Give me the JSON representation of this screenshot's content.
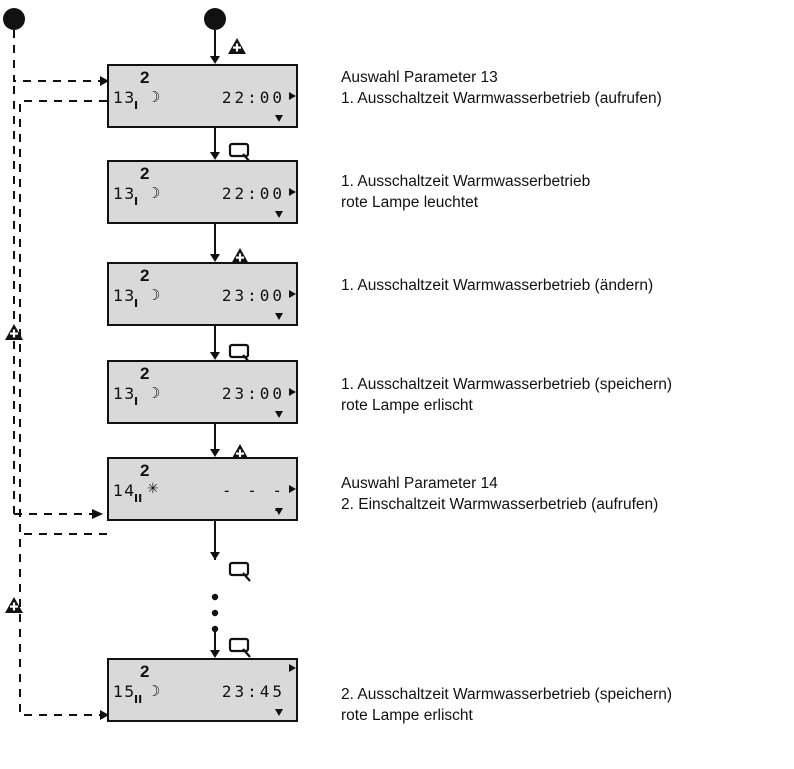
{
  "screens": [
    {
      "program": "2",
      "param": "13",
      "sub": "I",
      "mode": "moon",
      "value": "22:00",
      "arrow_right": true,
      "arrow_down": true,
      "desc": [
        "Auswahl Parameter 13",
        "1. Ausschaltzeit  Warmwasserbetrieb  (aufrufen)"
      ]
    },
    {
      "program": "2",
      "param": "13",
      "sub": "I",
      "mode": "moon",
      "value": "22:00",
      "arrow_right": true,
      "arrow_down": true,
      "desc": [
        "1. Ausschaltzeit  Warmwasserbetrieb",
        "rote Lampe leuchtet"
      ]
    },
    {
      "program": "2",
      "param": "13",
      "sub": "I",
      "mode": "moon",
      "value": "23:00",
      "arrow_right": true,
      "arrow_down": true,
      "desc": [
        "1. Ausschaltzeit  Warmwasserbetrieb  (ändern)"
      ]
    },
    {
      "program": "2",
      "param": "13",
      "sub": "I",
      "mode": "moon",
      "value": "23:00",
      "arrow_right": true,
      "arrow_down": true,
      "desc": [
        "1. Ausschaltzeit  Warmwasserbetrieb  (speichern)",
        "rote Lampe erlischt"
      ]
    },
    {
      "program": "2",
      "param": "14",
      "sub": "II",
      "mode": "sun",
      "value": "- - - -",
      "arrow_right": true,
      "arrow_down": true,
      "desc": [
        "Auswahl Parameter 14",
        "2. Einschaltzeit  Warmwasserbetrieb  (aufrufen)"
      ]
    },
    {
      "program": "2",
      "param": "15",
      "sub": "II",
      "mode": "moon",
      "value": "23:45",
      "arrow_right": true,
      "arrow_down": true,
      "desc": [
        "2. Ausschaltzeit  Warmwasserbetrieb  (speichern)",
        "rote Lampe erlischt"
      ]
    }
  ],
  "key_sequence": [
    "plus-key",
    "magnifier-key",
    "plus-key",
    "magnifier-key",
    "plus-key",
    "magnifier-key",
    "magnifier-key"
  ],
  "colors": {
    "lcd_background": "#d9d9d9",
    "ink": "#111111"
  },
  "icons": {
    "moon": "moon-icon",
    "sun": "sun-icon",
    "plus": "plus-triangle-icon",
    "magnifier": "magnifier-icon"
  }
}
